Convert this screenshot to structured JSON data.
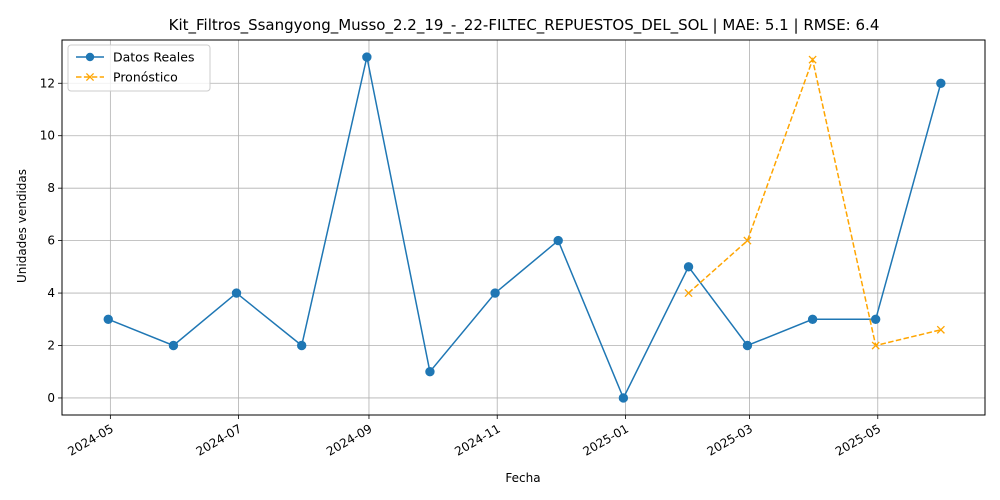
{
  "chart_data": {
    "type": "line",
    "title": "Kit_Filtros_Ssangyong_Musso_2.2_19_-_22-FILTEC_REPUESTOS_DEL_SOL | MAE: 5.1 | RMSE: 6.4",
    "xlabel": "Fecha",
    "ylabel": "Unidades vendidas",
    "grid": true,
    "legend_position": "top-left",
    "xlim": [
      "2024-04-08",
      "2025-06-21"
    ],
    "ylim": [
      -0.65,
      13.65
    ],
    "x_ticks": [
      "2024-05-01",
      "2024-07-01",
      "2024-09-01",
      "2024-11-01",
      "2025-01-01",
      "2025-03-01",
      "2025-05-01"
    ],
    "x_tick_labels": [
      "2024-05",
      "2024-07",
      "2024-09",
      "2024-11",
      "2025-01",
      "2025-03",
      "2025-05"
    ],
    "y_ticks": [
      0,
      2,
      4,
      6,
      8,
      10,
      12
    ],
    "y_tick_labels": [
      "0",
      "2",
      "4",
      "6",
      "8",
      "10",
      "12"
    ],
    "series": [
      {
        "name": "Datos Reales",
        "color": "#1f77b4",
        "marker": "circle",
        "linestyle": "solid",
        "x": [
          "2024-04-30",
          "2024-05-31",
          "2024-06-30",
          "2024-07-31",
          "2024-08-31",
          "2024-09-30",
          "2024-10-31",
          "2024-11-30",
          "2024-12-31",
          "2025-01-31",
          "2025-02-28",
          "2025-03-31",
          "2025-04-30",
          "2025-05-31"
        ],
        "values": [
          3,
          2,
          4,
          2,
          13,
          1,
          4,
          6,
          0,
          5,
          2,
          3,
          3,
          12
        ]
      },
      {
        "name": "Pronóstico",
        "color": "#ffa500",
        "marker": "x",
        "linestyle": "dashed",
        "x": [
          "2025-01-31",
          "2025-02-28",
          "2025-03-31",
          "2025-04-30",
          "2025-05-31"
        ],
        "values": [
          4,
          6,
          12.9,
          2,
          2.6
        ]
      }
    ]
  }
}
